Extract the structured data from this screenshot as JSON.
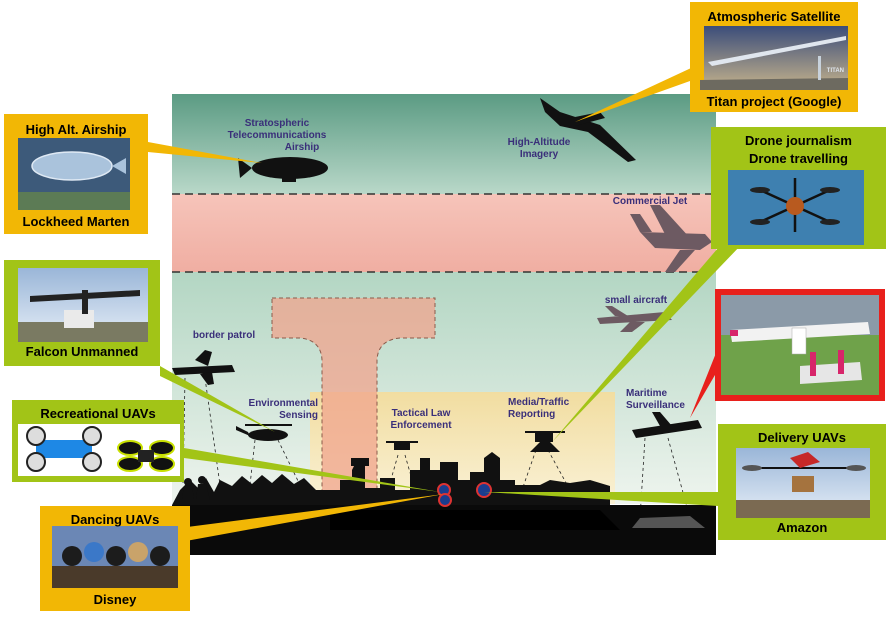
{
  "zones": {
    "stratospheric_airship": [
      "Stratospheric",
      "Telecommunications",
      "Airship"
    ],
    "high_altitude_imagery": [
      "High-Altitude",
      "Imagery"
    ],
    "commercial_jet": "Commercial Jet",
    "small_aircraft": "small aircraft",
    "border_patrol": "border patrol",
    "environmental_sensing": [
      "Environmental",
      "Sensing"
    ],
    "tactical_law": [
      "Tactical Law",
      "Enforcement"
    ],
    "media_traffic": [
      "Media/Traffic",
      "Reporting"
    ],
    "maritime": [
      "Maritime",
      "Surveillance"
    ]
  },
  "callouts": {
    "atmospheric_satellite": {
      "title": "Atmospheric Satellite",
      "subtitle": "Titan project (Google)",
      "logo": "TITAN"
    },
    "high_alt_airship": {
      "title": "High Alt. Airship",
      "subtitle": "Lockheed Marten"
    },
    "drone_journalism": {
      "title": "Drone journalism",
      "title2": "Drone travelling"
    },
    "falcon_unmanned": {
      "subtitle": "Falcon Unmanned"
    },
    "recreational": {
      "title": "Recreational UAVs"
    },
    "dancing": {
      "title": "Dancing UAVs",
      "subtitle": "Disney"
    },
    "delivery": {
      "title": "Delivery UAVs",
      "subtitle": "Amazon"
    }
  },
  "colors": {
    "orange_callout": "#f2b705",
    "green_callout": "#a2c417",
    "red_callout": "#e8201c",
    "stratosphere": "#5e9e86",
    "jet_band": "#f3b9ae",
    "low_band": "#c7e0d2",
    "urban_zone": "#f2d79a",
    "label_text": "#3a2f7a"
  }
}
